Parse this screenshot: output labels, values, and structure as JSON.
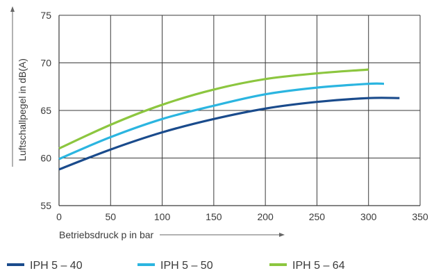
{
  "chart_data": {
    "type": "line",
    "title": "",
    "xlabel": "Betriebsdruck p in bar",
    "ylabel": "Luftschallpegel in dB(A)",
    "xlim": [
      0,
      350
    ],
    "ylim": [
      55,
      75
    ],
    "xticks": [
      "0",
      "50",
      "100",
      "150",
      "200",
      "250",
      "300",
      "350"
    ],
    "yticks": [
      "55",
      "60",
      "65",
      "70",
      "75"
    ],
    "grid": true,
    "legend": "bottom",
    "series": [
      {
        "name": "IPH 5 – 40",
        "color": "#1a4b8c",
        "x": [
          0,
          50,
          100,
          150,
          200,
          250,
          300,
          330
        ],
        "y": [
          58.8,
          60.9,
          62.7,
          64.1,
          65.2,
          65.9,
          66.3,
          66.3
        ]
      },
      {
        "name": "IPH 5 – 50",
        "color": "#2bb5e0",
        "x": [
          0,
          50,
          100,
          150,
          200,
          250,
          300,
          315
        ],
        "y": [
          59.9,
          62.2,
          64.1,
          65.5,
          66.7,
          67.4,
          67.8,
          67.8
        ]
      },
      {
        "name": "IPH 5 – 64",
        "color": "#8cc63f",
        "x": [
          0,
          50,
          100,
          150,
          200,
          250,
          300
        ],
        "y": [
          61.0,
          63.5,
          65.6,
          67.2,
          68.3,
          68.9,
          69.3
        ]
      }
    ]
  }
}
